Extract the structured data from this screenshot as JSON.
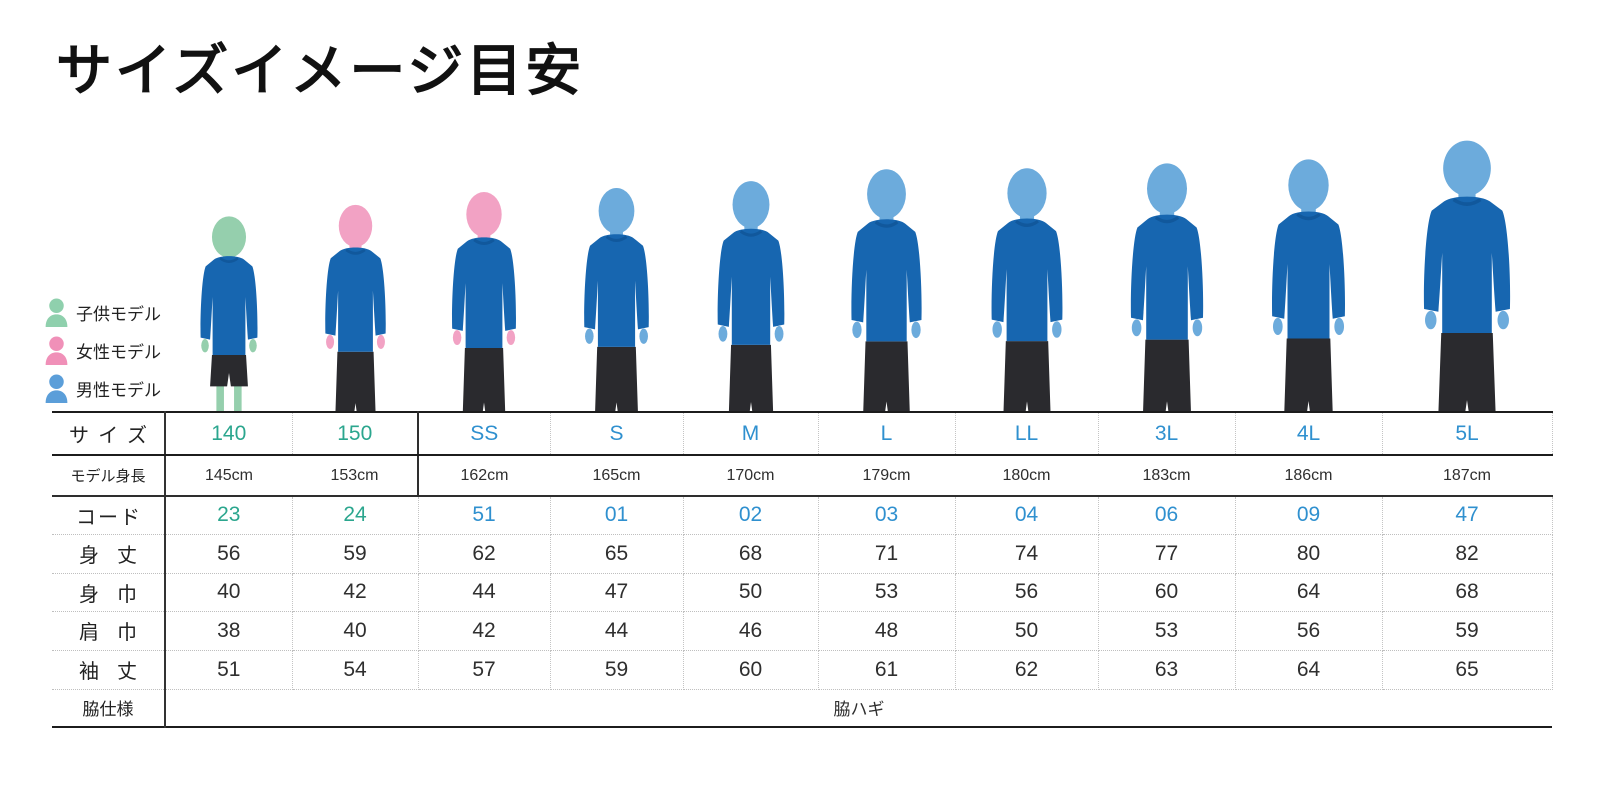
{
  "title": "サイズイメージ目安",
  "legend": [
    {
      "key": "child",
      "label": "子供モデル",
      "color": "#8fd0ad"
    },
    {
      "key": "female",
      "label": "女性モデル",
      "color": "#f090b8"
    },
    {
      "key": "male",
      "label": "男性モデル",
      "color": "#5b9ed9"
    }
  ],
  "table": {
    "row_labels": {
      "size": "サイズ",
      "model_height": "モデル身長",
      "code": "コード",
      "body_length": "身丈",
      "body_width": "身巾",
      "shoulder_width": "肩巾",
      "sleeve_length": "袖丈",
      "side_spec": "脇仕様"
    },
    "side_value": "脇ハギ",
    "columns": [
      {
        "size": "140",
        "group": "kids",
        "model": "child",
        "height": "145cm",
        "height_cm": 145,
        "code": "23",
        "body_length": "56",
        "body_width": "40",
        "shoulder_width": "38",
        "sleeve_length": "51"
      },
      {
        "size": "150",
        "group": "kids",
        "model": "female",
        "height": "153cm",
        "height_cm": 153,
        "code": "24",
        "body_length": "59",
        "body_width": "42",
        "shoulder_width": "40",
        "sleeve_length": "54"
      },
      {
        "size": "SS",
        "group": "adult",
        "model": "female",
        "height": "162cm",
        "height_cm": 162,
        "code": "51",
        "body_length": "62",
        "body_width": "44",
        "shoulder_width": "42",
        "sleeve_length": "57"
      },
      {
        "size": "S",
        "group": "adult",
        "model": "male",
        "height": "165cm",
        "height_cm": 165,
        "code": "01",
        "body_length": "65",
        "body_width": "47",
        "shoulder_width": "44",
        "sleeve_length": "59"
      },
      {
        "size": "M",
        "group": "adult",
        "model": "male",
        "height": "170cm",
        "height_cm": 170,
        "code": "02",
        "body_length": "68",
        "body_width": "50",
        "shoulder_width": "46",
        "sleeve_length": "60"
      },
      {
        "size": "L",
        "group": "adult",
        "model": "male",
        "height": "179cm",
        "height_cm": 179,
        "code": "03",
        "body_length": "71",
        "body_width": "53",
        "shoulder_width": "48",
        "sleeve_length": "61"
      },
      {
        "size": "LL",
        "group": "adult",
        "model": "male",
        "height": "180cm",
        "height_cm": 180,
        "code": "04",
        "body_length": "74",
        "body_width": "56",
        "shoulder_width": "50",
        "sleeve_length": "62"
      },
      {
        "size": "3L",
        "group": "adult",
        "model": "male",
        "height": "183cm",
        "height_cm": 183,
        "code": "06",
        "body_length": "77",
        "body_width": "60",
        "shoulder_width": "53",
        "sleeve_length": "63"
      },
      {
        "size": "4L",
        "group": "adult",
        "model": "male",
        "height": "186cm",
        "height_cm": 186,
        "code": "09",
        "body_length": "80",
        "body_width": "64",
        "shoulder_width": "56",
        "sleeve_length": "64"
      },
      {
        "size": "5L",
        "group": "adult",
        "model": "male",
        "height": "187cm",
        "height_cm": 187,
        "code": "47",
        "body_length": "82",
        "body_width": "68",
        "shoulder_width": "59",
        "sleeve_length": "65"
      }
    ]
  },
  "colors": {
    "accent_teal": "#2ba68e",
    "accent_blue": "#2f90cf",
    "shirt": "#1766b0",
    "collar": "#11589c",
    "pants": "#2a2a2e",
    "skin_child": "#95cfad",
    "skin_female": "#f2a2c4",
    "skin_male": "#6cabdc"
  }
}
